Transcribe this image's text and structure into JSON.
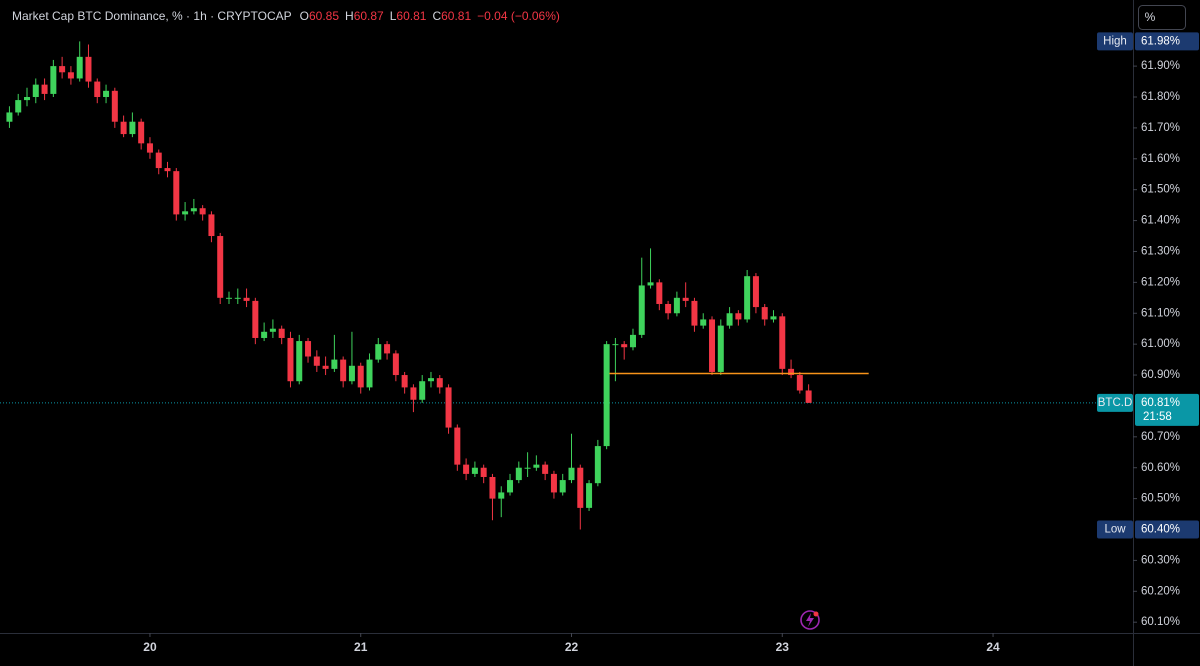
{
  "chart_data": {
    "type": "candlestick",
    "title": "Market Cap BTC Dominance, % · 1h · CRYPTOCAP",
    "ohlc_legend": [
      {
        "label": "O",
        "value": 60.85
      },
      {
        "label": "H",
        "value": 60.87
      },
      {
        "label": "L",
        "value": 60.81
      },
      {
        "label": "C",
        "value": 60.81
      }
    ],
    "change_label": "−0.04 (−0.06%)",
    "x": [
      19.3333,
      19.375,
      19.4167,
      19.4583,
      19.5,
      19.5417,
      19.5833,
      19.625,
      19.6667,
      19.7083,
      19.75,
      19.7917,
      19.8333,
      19.875,
      19.9167,
      19.9583,
      20,
      20.0417,
      20.0833,
      20.125,
      20.1667,
      20.2083,
      20.25,
      20.2917,
      20.3333,
      20.375,
      20.4167,
      20.4583,
      20.5,
      20.5417,
      20.5833,
      20.625,
      20.6667,
      20.7083,
      20.75,
      20.7917,
      20.8333,
      20.875,
      20.9167,
      20.9583,
      21,
      21.0417,
      21.0833,
      21.125,
      21.1667,
      21.2083,
      21.25,
      21.2917,
      21.3333,
      21.375,
      21.4167,
      21.4583,
      21.5,
      21.5417,
      21.5833,
      21.625,
      21.6667,
      21.7083,
      21.75,
      21.7917,
      21.8333,
      21.875,
      21.9167,
      21.9583,
      22,
      22.0417,
      22.0833,
      22.125,
      22.1667,
      22.2083,
      22.25,
      22.2917,
      22.3333,
      22.375,
      22.4167,
      22.4583,
      22.5,
      22.5417,
      22.5833,
      22.625,
      22.6667,
      22.7083,
      22.75,
      22.7917,
      22.8333,
      22.875,
      22.9167,
      22.9583,
      23,
      23.0417,
      23.0833,
      23.125
    ],
    "open": [
      61.72,
      61.75,
      61.79,
      61.8,
      61.84,
      61.81,
      61.9,
      61.88,
      61.86,
      61.93,
      61.85,
      61.8,
      61.82,
      61.72,
      61.68,
      61.72,
      61.65,
      61.62,
      61.57,
      61.56,
      61.42,
      61.43,
      61.44,
      61.42,
      61.35,
      61.15,
      61.15,
      61.15,
      61.14,
      61.02,
      61.04,
      61.05,
      61.02,
      60.88,
      61.01,
      60.96,
      60.93,
      60.92,
      60.95,
      60.88,
      60.93,
      60.86,
      60.95,
      61.0,
      60.97,
      60.9,
      60.86,
      60.82,
      60.88,
      60.89,
      60.86,
      60.73,
      60.61,
      60.58,
      60.6,
      60.57,
      60.5,
      60.52,
      60.56,
      60.6,
      60.6,
      60.61,
      60.58,
      60.52,
      60.56,
      60.6,
      60.47,
      60.55,
      60.67,
      61.0,
      61.0,
      60.99,
      61.03,
      61.19,
      61.2,
      61.13,
      61.1,
      61.15,
      61.14,
      61.06,
      61.08,
      60.91,
      61.06,
      61.1,
      61.08,
      61.22,
      61.12,
      61.08,
      61.09,
      60.92,
      60.9,
      60.85
    ],
    "high": [
      61.77,
      61.81,
      61.83,
      61.86,
      61.86,
      61.92,
      61.93,
      61.9,
      61.98,
      61.97,
      61.86,
      61.84,
      61.83,
      61.74,
      61.75,
      61.73,
      61.67,
      61.63,
      61.59,
      61.57,
      61.46,
      61.47,
      61.45,
      61.43,
      61.36,
      61.17,
      61.18,
      61.18,
      61.15,
      61.07,
      61.08,
      61.06,
      61.04,
      61.03,
      61.02,
      60.98,
      60.96,
      61.03,
      60.96,
      61.04,
      60.94,
      60.97,
      61.02,
      61.01,
      60.98,
      60.91,
      60.87,
      60.9,
      60.91,
      60.9,
      60.87,
      60.74,
      60.63,
      60.62,
      60.61,
      60.58,
      60.54,
      60.58,
      60.62,
      60.65,
      60.64,
      60.62,
      60.59,
      60.58,
      60.71,
      60.61,
      60.56,
      60.69,
      61.01,
      61.02,
      61.01,
      61.05,
      61.28,
      61.31,
      61.21,
      61.14,
      61.17,
      61.2,
      61.15,
      61.1,
      61.09,
      61.08,
      61.12,
      61.11,
      61.24,
      61.23,
      61.13,
      61.11,
      61.1,
      60.95,
      60.91,
      60.87
    ],
    "low": [
      61.7,
      61.74,
      61.77,
      61.78,
      61.79,
      61.8,
      61.86,
      61.84,
      61.85,
      61.83,
      61.78,
      61.78,
      61.7,
      61.67,
      61.67,
      61.63,
      61.6,
      61.55,
      61.54,
      61.4,
      61.4,
      61.42,
      61.4,
      61.33,
      61.13,
      61.13,
      61.13,
      61.12,
      61.0,
      61.01,
      61.02,
      61.0,
      60.86,
      60.87,
      60.94,
      60.91,
      60.9,
      60.91,
      60.86,
      60.87,
      60.84,
      60.85,
      60.94,
      60.95,
      60.88,
      60.84,
      60.78,
      60.81,
      60.86,
      60.84,
      60.71,
      60.59,
      60.56,
      60.57,
      60.55,
      60.43,
      60.44,
      60.51,
      60.55,
      60.57,
      60.59,
      60.56,
      60.5,
      60.51,
      60.55,
      60.4,
      60.46,
      60.54,
      60.66,
      60.88,
      60.95,
      60.98,
      61.02,
      61.18,
      61.11,
      61.08,
      61.09,
      61.12,
      61.04,
      61.05,
      60.9,
      60.9,
      61.05,
      61.06,
      61.07,
      61.1,
      61.06,
      61.07,
      60.9,
      60.89,
      60.84,
      60.81
    ],
    "close": [
      61.75,
      61.79,
      61.8,
      61.84,
      61.81,
      61.9,
      61.88,
      61.86,
      61.93,
      61.85,
      61.8,
      61.82,
      61.72,
      61.68,
      61.72,
      61.65,
      61.62,
      61.57,
      61.56,
      61.42,
      61.43,
      61.44,
      61.42,
      61.35,
      61.15,
      61.15,
      61.15,
      61.14,
      61.02,
      61.04,
      61.05,
      61.02,
      60.88,
      61.01,
      60.96,
      60.93,
      60.92,
      60.95,
      60.88,
      60.93,
      60.86,
      60.95,
      61.0,
      60.97,
      60.9,
      60.86,
      60.82,
      60.88,
      60.89,
      60.86,
      60.73,
      60.61,
      60.58,
      60.6,
      60.57,
      60.5,
      60.52,
      60.56,
      60.6,
      60.6,
      60.61,
      60.58,
      60.52,
      60.56,
      60.6,
      60.47,
      60.55,
      60.67,
      61.0,
      61.0,
      60.99,
      61.03,
      61.19,
      61.2,
      61.13,
      61.1,
      61.15,
      61.14,
      61.06,
      61.08,
      60.91,
      61.06,
      61.1,
      61.08,
      61.22,
      61.12,
      61.08,
      61.09,
      60.92,
      60.9,
      60.85,
      60.81
    ],
    "up_color": "#3fd35c",
    "down_color": "#f23645",
    "xlim": [
      19.336,
      24.664
    ],
    "xticks": [
      20,
      21,
      22,
      23,
      24
    ],
    "ylim": [
      60.065,
      62.114
    ],
    "yticks": [
      {
        "value": 61.9,
        "label": "61.90%"
      },
      {
        "value": 61.8,
        "label": "61.80%"
      },
      {
        "value": 61.7,
        "label": "61.70%"
      },
      {
        "value": 61.6,
        "label": "61.60%"
      },
      {
        "value": 61.5,
        "label": "61.50%"
      },
      {
        "value": 61.4,
        "label": "61.40%"
      },
      {
        "value": 61.3,
        "label": "61.30%"
      },
      {
        "value": 61.2,
        "label": "61.20%"
      },
      {
        "value": 61.1,
        "label": "61.10%"
      },
      {
        "value": 61,
        "label": "61.00%"
      },
      {
        "value": 60.9,
        "label": "60.90%"
      },
      {
        "value": 60.7,
        "label": "60.70%"
      },
      {
        "value": 60.6,
        "label": "60.60%"
      },
      {
        "value": 60.5,
        "label": "60.50%"
      },
      {
        "value": 60.3,
        "label": "60.30%"
      },
      {
        "value": 60.2,
        "label": "60.20%"
      },
      {
        "value": 60.1,
        "label": "60.10%"
      }
    ],
    "hline": {
      "value": 60.905,
      "x": [
        22.18,
        23.41
      ],
      "color": "#f7931a"
    },
    "price_markers": [
      {
        "name": "High",
        "value": 61.98,
        "label": "61.98%",
        "color": "#1c3a70"
      },
      {
        "name": "Low",
        "value": 60.4,
        "label": "60.40%",
        "color": "#1c3a70"
      },
      {
        "name": "BTC.D",
        "value": 60.81,
        "label": "60.81%",
        "countdown": "21:58",
        "color": "#0a97a6"
      }
    ],
    "scale_mode": "%"
  }
}
